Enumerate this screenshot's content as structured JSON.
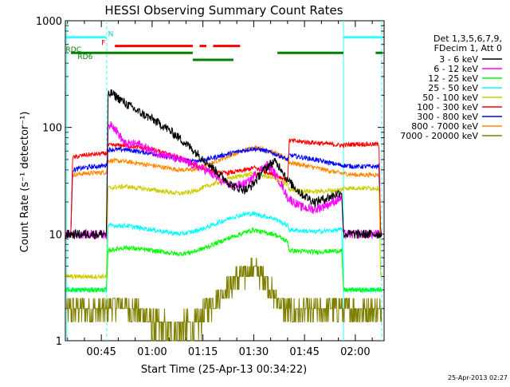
{
  "chart_data": {
    "type": "line",
    "title": "HESSI Observing Summary Count Rates",
    "xlabel": "Start Time (25-Apr-13 00:34:22)",
    "ylabel": "Count Rate (s⁻¹ detector⁻¹)",
    "y_scale": "log",
    "ylim": [
      1,
      1000
    ],
    "xlim_minutes": [
      34.37,
      128.5
    ],
    "x_ticks": [
      {
        "t": 45,
        "label": "00:45"
      },
      {
        "t": 60,
        "label": "01:00"
      },
      {
        "t": 75,
        "label": "01:15"
      },
      {
        "t": 90,
        "label": "01:30"
      },
      {
        "t": 105,
        "label": "01:45"
      },
      {
        "t": 120,
        "label": "02:00"
      }
    ],
    "y_ticks": [
      {
        "v": 1,
        "label": "1"
      },
      {
        "v": 10,
        "label": "10"
      },
      {
        "v": 100,
        "label": "100"
      },
      {
        "v": 1000,
        "label": "1000"
      }
    ],
    "legend_title": [
      "Det 1,3,5,6,7,9,",
      "FDecim 1, Att 0"
    ],
    "series": [
      {
        "name": "3 - 6 keV",
        "color": "#000000",
        "x": [
          34.5,
          36,
          46.5,
          47,
          48,
          52,
          56,
          60,
          64,
          68,
          72,
          76,
          80,
          84,
          88,
          90,
          92,
          94,
          96,
          98,
          100,
          104,
          108,
          112,
          116,
          116.5,
          123,
          127.5,
          127.8
        ],
        "y": [
          10,
          10,
          10,
          200,
          210,
          170,
          140,
          120,
          100,
          80,
          62,
          48,
          36,
          28,
          26,
          30,
          37,
          43,
          48,
          42,
          32,
          24,
          20,
          22,
          25,
          10,
          10,
          10,
          10
        ]
      },
      {
        "name": "6 - 12 keV",
        "color": "#ff00ff",
        "x": [
          34.5,
          36,
          46.5,
          47,
          48,
          52,
          56,
          60,
          64,
          68,
          72,
          76,
          80,
          84,
          88,
          90,
          92,
          94,
          96,
          98,
          100,
          104,
          108,
          112,
          116,
          116.5,
          123,
          127.5,
          127.8
        ],
        "y": [
          10,
          10,
          10,
          100,
          110,
          70,
          70,
          60,
          55,
          50,
          45,
          40,
          32,
          28,
          30,
          35,
          40,
          45,
          38,
          30,
          22,
          18,
          17,
          19,
          22,
          10,
          10,
          10,
          10
        ]
      },
      {
        "name": "12 - 25 keV",
        "color": "#00ff00",
        "x": [
          34.5,
          36,
          46.5,
          47,
          52,
          60,
          68,
          72,
          76,
          80,
          84,
          88,
          90,
          92,
          96,
          100,
          100.5,
          108,
          116,
          116.5,
          123,
          127.5,
          127.8
        ],
        "y": [
          3,
          3,
          3,
          7,
          7.5,
          7,
          6.5,
          6.8,
          7.5,
          8.5,
          9.5,
          10.5,
          11,
          10.5,
          10,
          8.5,
          7,
          6.8,
          7,
          3,
          3,
          3,
          3
        ]
      },
      {
        "name": "25 - 50 keV",
        "color": "#00ffff",
        "x": [
          34.5,
          36,
          46.5,
          47,
          52,
          60,
          68,
          72,
          76,
          80,
          84,
          88,
          90,
          92,
          96,
          100,
          100.5,
          108,
          116,
          116.5,
          123,
          127.5,
          127.8
        ],
        "y": [
          3,
          3,
          3,
          12,
          12,
          11,
          10,
          10.5,
          11.5,
          13,
          14.5,
          15.5,
          15.5,
          15,
          14,
          12,
          11,
          10.5,
          11,
          3,
          3,
          3,
          3
        ]
      },
      {
        "name": "50 - 100 keV",
        "color": "#cccc00",
        "x": [
          34.5,
          36,
          46.5,
          47,
          52,
          60,
          68,
          72,
          76,
          80,
          84,
          88,
          90,
          92,
          96,
          100,
          100.5,
          108,
          116,
          116.5,
          120,
          127,
          127.5,
          127.8
        ],
        "y": [
          4,
          4,
          4,
          27,
          28,
          26,
          24,
          25,
          28,
          31,
          34,
          36,
          37,
          36,
          33,
          29,
          26,
          25,
          26,
          27,
          27,
          27,
          4,
          4
        ]
      },
      {
        "name": "100 - 300 keV",
        "color": "#ff0000",
        "x": [
          34.5,
          36,
          36.5,
          40,
          46.5,
          47,
          52,
          60,
          68,
          72,
          76,
          80,
          84,
          88,
          90,
          92,
          96,
          100,
          100.5,
          108,
          116,
          116.5,
          120,
          127,
          127.5,
          127.8
        ],
        "y": [
          10,
          10,
          52,
          55,
          57,
          68,
          68,
          62,
          52,
          45,
          40,
          37,
          38,
          40,
          42,
          40,
          36,
          32,
          75,
          72,
          68,
          68,
          70,
          69,
          10,
          10
        ]
      },
      {
        "name": "300 - 800 keV",
        "color": "#0000ff",
        "x": [
          34.5,
          36,
          36.5,
          40,
          46.5,
          47,
          52,
          60,
          68,
          72,
          76,
          80,
          84,
          88,
          90,
          92,
          96,
          100,
          100.5,
          108,
          116,
          116.5,
          120,
          127,
          127.5,
          127.8
        ],
        "y": [
          10,
          10,
          40,
          42,
          44,
          62,
          62,
          57,
          50,
          48,
          50,
          54,
          58,
          62,
          63,
          62,
          57,
          50,
          55,
          50,
          44,
          44,
          43,
          43,
          10,
          10
        ]
      },
      {
        "name": "800 - 7000 keV",
        "color": "#ff8800",
        "x": [
          34.5,
          36,
          36.5,
          40,
          46.5,
          47,
          52,
          60,
          68,
          72,
          76,
          80,
          84,
          88,
          90,
          92,
          96,
          100,
          100.5,
          108,
          116,
          116.5,
          120,
          127,
          127.5,
          127.8
        ],
        "y": [
          10,
          10,
          36,
          37,
          38,
          49,
          48,
          44,
          40,
          40,
          44,
          50,
          56,
          62,
          65,
          64,
          58,
          50,
          47,
          42,
          37,
          37,
          36,
          36,
          10,
          10
        ]
      },
      {
        "name": "7000 - 20000 keV",
        "color": "#808000",
        "x": [
          34.5,
          36,
          46.5,
          47,
          52,
          58,
          60,
          64,
          68,
          72,
          74,
          76,
          80,
          84,
          88,
          90,
          92,
          94,
          96,
          98,
          100,
          104,
          110,
          116,
          116.5,
          127.5,
          127.8
        ],
        "y": [
          2.5,
          2.5,
          2.5,
          2.8,
          2.8,
          2.2,
          1.6,
          1.4,
          1.4,
          1.5,
          1.8,
          2.5,
          3.5,
          4.5,
          5.2,
          5.5,
          5.2,
          4.5,
          3.5,
          2.8,
          2.5,
          2.3,
          2.4,
          2.6,
          2.5,
          2.5,
          2.5
        ]
      }
    ],
    "flag_bars": [
      {
        "label": "N",
        "label_color": "#00cccc",
        "color": "#33ffff",
        "level": 700,
        "segments": [
          [
            34.5,
            46.5
          ],
          [
            116.5,
            128
          ]
        ],
        "label_at": 47
      },
      {
        "label": "F",
        "label_color": "#ff0000",
        "color": "#ff0000",
        "level": 580,
        "segments": [
          [
            49,
            72
          ],
          [
            74,
            76
          ],
          [
            78,
            86
          ]
        ],
        "label_at": 45
      },
      {
        "label": "RDC",
        "label_color": "#008000",
        "color": "#008000",
        "level": 500,
        "segments": [
          [
            36,
            72
          ],
          [
            97,
            116.5
          ],
          [
            126,
            128
          ]
        ],
        "label_at": 34.5
      },
      {
        "label": "RD6",
        "label_color": "#008000",
        "color": "#008000",
        "level": 430,
        "segments": [
          [
            72,
            84
          ]
        ],
        "label_at": 38
      }
    ],
    "vlines": [
      {
        "t": 34.8,
        "color": "#33ffff",
        "style": "solid"
      },
      {
        "t": 46.6,
        "color": "#33ffff",
        "style": "dashed"
      },
      {
        "t": 116.5,
        "color": "#33ffff",
        "style": "solid"
      },
      {
        "t": 127.8,
        "color": "#33ffff",
        "style": "dashed"
      }
    ],
    "footer": "25-Apr-2013 02:27"
  }
}
